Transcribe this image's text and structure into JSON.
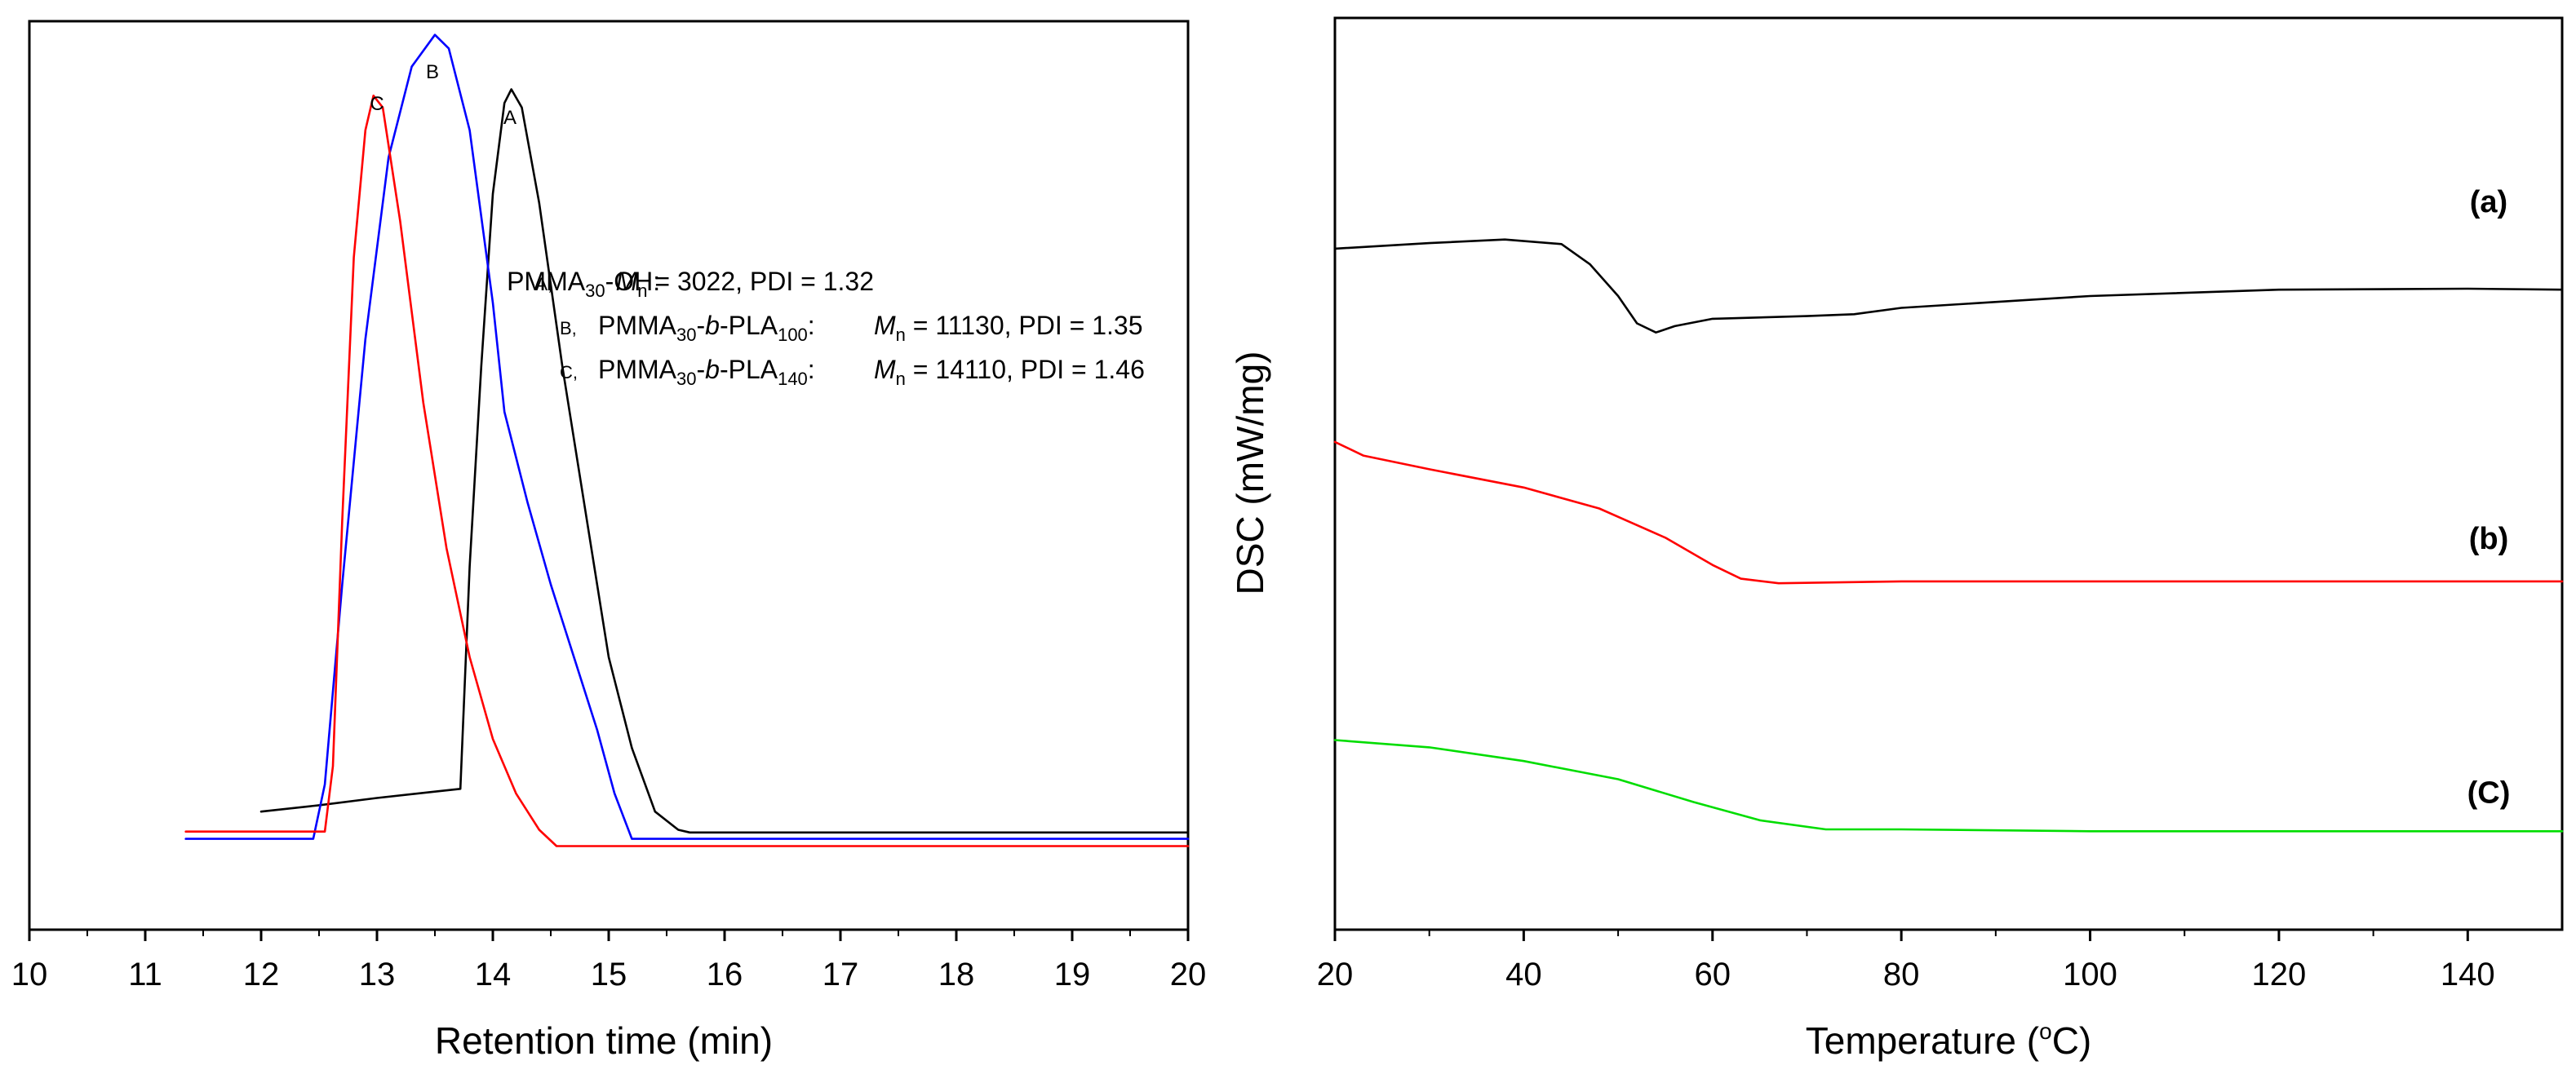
{
  "chart_data": [
    {
      "type": "line",
      "title": "",
      "xlabel": "Retention time (min)",
      "ylabel": "",
      "xlim": [
        10,
        20
      ],
      "ylim": [
        0,
        1
      ],
      "x_ticks": [
        "10",
        "11",
        "12",
        "13",
        "14",
        "15",
        "16",
        "17",
        "18",
        "19",
        "20"
      ],
      "peak_labels": [
        "C",
        "B",
        "A"
      ],
      "legend": [
        {
          "id": "A,",
          "name": "PMMA",
          "sub1": "30",
          "name2": "-OH:",
          "b": "",
          "sub2": "",
          "mlabel": "M",
          "msub": "n",
          "value": " = 3022,  PDI = 1.32"
        },
        {
          "id": "B,",
          "name": "PMMA",
          "sub1": "30",
          "name2": "-",
          "b": "b",
          "sub2": "100",
          "mlabel": "M",
          "msub": "n",
          "value": " = 11130, PDI = 1.35"
        },
        {
          "id": "C,",
          "name": "PMMA",
          "sub1": "30",
          "name2": "-",
          "b": "b",
          "sub2": "140",
          "mlabel": "M",
          "msub": "n",
          "value": " = 14110, PDI = 1.46"
        }
      ],
      "legend_pla": "-PLA",
      "legend_colon": ":",
      "series": [
        {
          "name": "A",
          "color": "#000000",
          "points": [
            [
              12.0,
              0.13
            ],
            [
              12.5,
              0.137
            ],
            [
              13.0,
              0.145
            ],
            [
              13.5,
              0.152
            ],
            [
              13.72,
              0.155
            ],
            [
              13.8,
              0.4
            ],
            [
              13.9,
              0.62
            ],
            [
              14.0,
              0.81
            ],
            [
              14.1,
              0.91
            ],
            [
              14.16,
              0.925
            ],
            [
              14.25,
              0.905
            ],
            [
              14.4,
              0.8
            ],
            [
              14.6,
              0.62
            ],
            [
              14.8,
              0.46
            ],
            [
              15.0,
              0.3
            ],
            [
              15.2,
              0.2
            ],
            [
              15.4,
              0.13
            ],
            [
              15.6,
              0.11
            ],
            [
              15.7,
              0.107
            ],
            [
              16.5,
              0.107
            ],
            [
              18.0,
              0.107
            ],
            [
              20.0,
              0.107
            ]
          ]
        },
        {
          "name": "B",
          "color": "#0000ff",
          "points": [
            [
              11.35,
              0.1
            ],
            [
              12.0,
              0.1
            ],
            [
              12.45,
              0.1
            ],
            [
              12.55,
              0.16
            ],
            [
              12.7,
              0.38
            ],
            [
              12.9,
              0.65
            ],
            [
              13.1,
              0.85
            ],
            [
              13.3,
              0.95
            ],
            [
              13.5,
              0.985
            ],
            [
              13.62,
              0.97
            ],
            [
              13.8,
              0.88
            ],
            [
              14.0,
              0.69
            ],
            [
              14.1,
              0.57
            ],
            [
              14.3,
              0.47
            ],
            [
              14.5,
              0.38
            ],
            [
              14.7,
              0.3
            ],
            [
              14.9,
              0.22
            ],
            [
              15.05,
              0.15
            ],
            [
              15.2,
              0.1
            ],
            [
              15.5,
              0.1
            ],
            [
              17.0,
              0.1
            ],
            [
              20.0,
              0.1
            ]
          ]
        },
        {
          "name": "C",
          "color": "#ff0000",
          "points": [
            [
              11.35,
              0.108
            ],
            [
              12.0,
              0.108
            ],
            [
              12.55,
              0.108
            ],
            [
              12.62,
              0.18
            ],
            [
              12.7,
              0.45
            ],
            [
              12.8,
              0.74
            ],
            [
              12.9,
              0.88
            ],
            [
              12.97,
              0.918
            ],
            [
              13.05,
              0.905
            ],
            [
              13.2,
              0.78
            ],
            [
              13.4,
              0.58
            ],
            [
              13.6,
              0.42
            ],
            [
              13.8,
              0.3
            ],
            [
              14.0,
              0.21
            ],
            [
              14.2,
              0.15
            ],
            [
              14.4,
              0.11
            ],
            [
              14.55,
              0.092
            ],
            [
              15.0,
              0.092
            ],
            [
              17.0,
              0.092
            ],
            [
              20.0,
              0.092
            ]
          ]
        }
      ]
    },
    {
      "type": "line",
      "title": "",
      "xlabel_main": "Temperature (",
      "xlabel_sup": "o",
      "xlabel_end": "C)",
      "ylabel": "DSC (mW/mg)",
      "xlim": [
        20,
        150
      ],
      "ylim": [
        0,
        1
      ],
      "x_ticks": [
        "20",
        "40",
        "60",
        "80",
        "100",
        "120",
        "140"
      ],
      "series": [
        {
          "name": "(a)",
          "color": "#000000",
          "points": [
            [
              20,
              0.747
            ],
            [
              30,
              0.753
            ],
            [
              38,
              0.757
            ],
            [
              44,
              0.752
            ],
            [
              47,
              0.73
            ],
            [
              50,
              0.695
            ],
            [
              52,
              0.665
            ],
            [
              54,
              0.655
            ],
            [
              56,
              0.662
            ],
            [
              60,
              0.67
            ],
            [
              70,
              0.673
            ],
            [
              75,
              0.675
            ],
            [
              80,
              0.682
            ],
            [
              100,
              0.695
            ],
            [
              120,
              0.702
            ],
            [
              140,
              0.703
            ],
            [
              150,
              0.702
            ]
          ]
        },
        {
          "name": "(b)",
          "color": "#ff0000",
          "points": [
            [
              20,
              0.535
            ],
            [
              23,
              0.52
            ],
            [
              30,
              0.505
            ],
            [
              40,
              0.485
            ],
            [
              48,
              0.462
            ],
            [
              55,
              0.43
            ],
            [
              60,
              0.4
            ],
            [
              63,
              0.385
            ],
            [
              67,
              0.38
            ],
            [
              80,
              0.382
            ],
            [
              100,
              0.382
            ],
            [
              120,
              0.382
            ],
            [
              140,
              0.382
            ],
            [
              150,
              0.382
            ]
          ]
        },
        {
          "name": "(C)",
          "color": "#00dd00",
          "points": [
            [
              20,
              0.208
            ],
            [
              30,
              0.2
            ],
            [
              40,
              0.185
            ],
            [
              50,
              0.165
            ],
            [
              58,
              0.14
            ],
            [
              65,
              0.12
            ],
            [
              72,
              0.11
            ],
            [
              80,
              0.11
            ],
            [
              100,
              0.108
            ],
            [
              120,
              0.108
            ],
            [
              140,
              0.108
            ],
            [
              150,
              0.108
            ]
          ]
        }
      ]
    }
  ]
}
